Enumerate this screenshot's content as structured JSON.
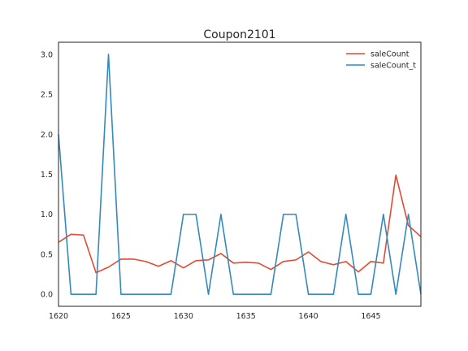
{
  "chart_data": {
    "type": "line",
    "title": "Coupon2101",
    "xlabel": "",
    "ylabel": "",
    "xlim": [
      1620,
      1649
    ],
    "ylim": [
      -0.15,
      3.15
    ],
    "xticks": [
      1620,
      1625,
      1630,
      1635,
      1640,
      1645
    ],
    "yticks": [
      "0.0",
      "0.5",
      "1.0",
      "1.5",
      "2.0",
      "2.5",
      "3.0"
    ],
    "grid": false,
    "legend": "top-right",
    "x": [
      1620,
      1621,
      1622,
      1623,
      1624,
      1625,
      1626,
      1627,
      1628,
      1629,
      1630,
      1631,
      1632,
      1633,
      1634,
      1635,
      1636,
      1637,
      1638,
      1639,
      1640,
      1641,
      1642,
      1643,
      1644,
      1645,
      1646,
      1647,
      1648,
      1649
    ],
    "series": [
      {
        "name": "saleCount",
        "color": "#E24A33",
        "values": [
          0.65,
          0.75,
          0.74,
          0.27,
          0.34,
          0.44,
          0.44,
          0.41,
          0.35,
          0.42,
          0.33,
          0.42,
          0.43,
          0.51,
          0.39,
          0.4,
          0.39,
          0.31,
          0.41,
          0.43,
          0.53,
          0.41,
          0.37,
          0.41,
          0.28,
          0.41,
          0.39,
          1.49,
          0.86,
          0.72
        ]
      },
      {
        "name": "saleCount_t",
        "color": "#348ABD",
        "values": [
          2,
          0,
          0,
          0,
          3,
          0,
          0,
          0,
          0,
          0,
          1,
          1,
          0,
          1,
          0,
          0,
          0,
          0,
          1,
          1,
          0,
          0,
          0,
          1,
          0,
          0,
          1,
          0,
          1,
          0
        ]
      }
    ]
  }
}
